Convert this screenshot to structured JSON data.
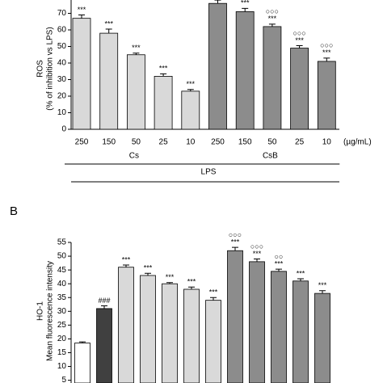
{
  "chart_data": [
    {
      "type": "bar",
      "ylabel": [
        "ROS",
        "(% of inhibition vs LPS)"
      ],
      "categories": [
        "250",
        "150",
        "50",
        "25",
        "10"
      ],
      "unit": "(µg/mL)",
      "group_label": "LPS",
      "series": [
        {
          "name": "Cs",
          "color": "#d9d9d9",
          "values": [
            67,
            58,
            45,
            32,
            23
          ],
          "errors": [
            2,
            2.5,
            1,
            1.5,
            1
          ],
          "annotations": [
            {
              "bar": 0,
              "text": "***"
            },
            {
              "bar": 1,
              "text": "***"
            },
            {
              "bar": 2,
              "text": "***"
            },
            {
              "bar": 3,
              "text": "***"
            },
            {
              "bar": 4,
              "text": "***"
            }
          ]
        },
        {
          "name": "CsB",
          "color": "#8c8c8c",
          "values": [
            76,
            71,
            62,
            49,
            41
          ],
          "errors": [
            2,
            2,
            1.5,
            1.5,
            2
          ],
          "annotations": [
            {
              "bar": 1,
              "text": "***"
            },
            {
              "bar": 2,
              "text": "***"
            },
            {
              "bar": 2,
              "text": "○○○"
            },
            {
              "bar": 3,
              "text": "***"
            },
            {
              "bar": 3,
              "text": "○○○"
            },
            {
              "bar": 4,
              "text": "***"
            },
            {
              "bar": 4,
              "text": "○○○"
            }
          ]
        }
      ],
      "ylim": [
        0,
        80
      ],
      "yticks": [
        0,
        10,
        20,
        30,
        40,
        50,
        60,
        70
      ]
    },
    {
      "type": "bar",
      "panel": "B",
      "ylabel": [
        "HO-1",
        "Mean fluorescence intensity"
      ],
      "values": [
        18.5,
        31,
        46,
        43,
        40,
        38,
        34,
        52,
        48,
        44.5,
        41,
        36.5
      ],
      "errors": [
        0.4,
        1,
        0.8,
        0.8,
        0.4,
        0.8,
        1,
        1.2,
        1,
        0.8,
        0.8,
        1
      ],
      "colors": [
        "#ffffff",
        "#404040",
        "#d9d9d9",
        "#d9d9d9",
        "#d9d9d9",
        "#d9d9d9",
        "#d9d9d9",
        "#8c8c8c",
        "#8c8c8c",
        "#8c8c8c",
        "#8c8c8c",
        "#8c8c8c"
      ],
      "annotations": [
        {
          "bar": 1,
          "text": "###"
        },
        {
          "bar": 2,
          "text": "***"
        },
        {
          "bar": 3,
          "text": "***"
        },
        {
          "bar": 4,
          "text": "***"
        },
        {
          "bar": 5,
          "text": "***"
        },
        {
          "bar": 6,
          "text": "***"
        },
        {
          "bar": 7,
          "text": "***"
        },
        {
          "bar": 7,
          "text": "○○○"
        },
        {
          "bar": 8,
          "text": "***"
        },
        {
          "bar": 8,
          "text": "○○○"
        },
        {
          "bar": 9,
          "text": "***"
        },
        {
          "bar": 9,
          "text": "○○"
        },
        {
          "bar": 10,
          "text": "***"
        },
        {
          "bar": 11,
          "text": "***"
        }
      ],
      "ylim": [
        4,
        55
      ],
      "yticks": [
        5,
        10,
        15,
        20,
        25,
        30,
        35,
        40,
        45,
        50,
        55
      ]
    }
  ]
}
